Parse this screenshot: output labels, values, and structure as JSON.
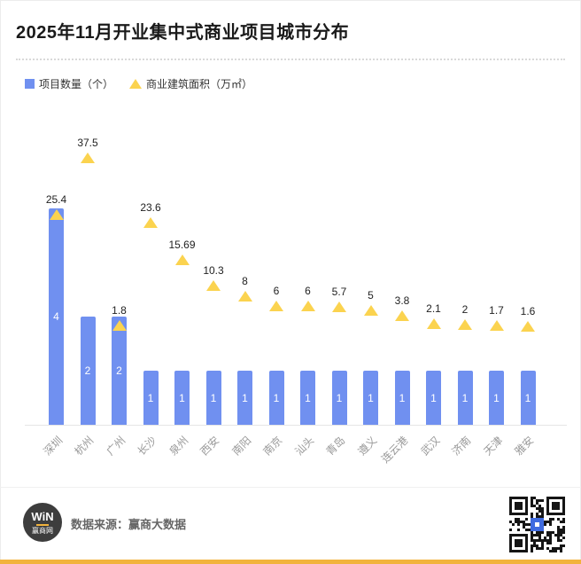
{
  "header": {
    "title": "2025年11月开业集中式商业项目城市分布"
  },
  "legend": [
    {
      "label": "项目数量（个）",
      "marker": "square-icon"
    },
    {
      "label": "商业建筑面积（万㎡）",
      "marker": "triangle-icon"
    }
  ],
  "colors": {
    "bar": "#7090F0",
    "triangle": "#FBD34F",
    "accent_strip": "#F2B33D",
    "qr_logo_blue": "#3F6BE0"
  },
  "chart_data": {
    "type": "bar",
    "title": "2025年11月开业集中式商业项目城市分布",
    "categories": [
      "深圳",
      "杭州",
      "广州",
      "长沙",
      "泉州",
      "西安",
      "南阳",
      "南京",
      "汕头",
      "青岛",
      "遵义",
      "连云港",
      "武汉",
      "济南",
      "天津",
      "雅安"
    ],
    "series": [
      {
        "name": "项目数量（个）",
        "type": "bar",
        "color": "#7090F0",
        "values": [
          4,
          2,
          2,
          1,
          1,
          1,
          1,
          1,
          1,
          1,
          1,
          1,
          1,
          1,
          1,
          1
        ]
      },
      {
        "name": "商业建筑面积（万㎡）",
        "type": "scatter",
        "marker": "triangle",
        "color": "#FBD34F",
        "values": [
          25.4,
          37.5,
          1.8,
          23.6,
          15.69,
          10.3,
          8,
          6,
          6,
          5.7,
          5,
          3.8,
          2.1,
          2,
          1.7,
          1.6
        ]
      }
    ],
    "legend_position": "top-left",
    "grid": false,
    "bar_value_labels": "inside-white",
    "scatter_value_labels": "above"
  },
  "footer": {
    "source": "数据来源：赢商大数据",
    "logo_top": "WiN",
    "logo_bottom": "赢商网"
  }
}
